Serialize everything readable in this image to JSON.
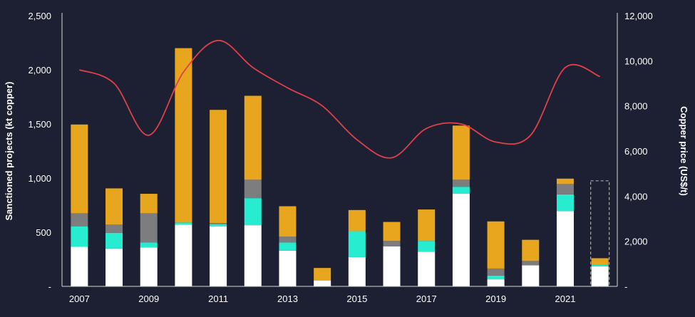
{
  "chart_data": {
    "type": "bar",
    "stacked": true,
    "categories": [
      "2007",
      "2008",
      "2009",
      "2010",
      "2011",
      "2012",
      "2013",
      "2014",
      "2015",
      "2016",
      "2017",
      "2018",
      "2019",
      "2020",
      "2021",
      "2022"
    ],
    "x_tick_labels": [
      "2007",
      "",
      "2009",
      "",
      "2011",
      "",
      "2013",
      "",
      "2015",
      "",
      "2017",
      "",
      "2019",
      "",
      "2021",
      ""
    ],
    "series": [
      {
        "color": "#ffffff",
        "values": [
          365,
          350,
          360,
          570,
          555,
          565,
          330,
          55,
          270,
          370,
          320,
          855,
          65,
          195,
          695,
          185
        ]
      },
      {
        "color": "#27ecd0",
        "values": [
          190,
          145,
          45,
          20,
          20,
          250,
          75,
          0,
          240,
          0,
          100,
          65,
          35,
          0,
          155,
          15
        ]
      },
      {
        "color": "#7d7d7f",
        "values": [
          120,
          75,
          270,
          0,
          10,
          170,
          55,
          0,
          0,
          50,
          0,
          65,
          65,
          40,
          95,
          0
        ]
      },
      {
        "color": "#e8a61f",
        "values": [
          820,
          335,
          180,
          1610,
          1045,
          775,
          280,
          115,
          195,
          175,
          290,
          500,
          435,
          195,
          50,
          60
        ]
      }
    ],
    "dashed_box": {
      "category": "2022",
      "ymin": 0,
      "ymax": 975,
      "color": "#aaaaaa"
    },
    "line": {
      "color": "#e0404a",
      "axis": "right",
      "x": [
        2007,
        2008,
        2009,
        2010,
        2011,
        2012,
        2013,
        2014,
        2015,
        2016,
        2017,
        2018,
        2019,
        2020,
        2021,
        2022
      ],
      "y": [
        9600,
        9000,
        6700,
        9500,
        10900,
        9700,
        8800,
        8000,
        6500,
        5700,
        7000,
        7200,
        6400,
        6700,
        9700,
        9300
      ]
    },
    "y_left": {
      "label": "Sanctioned projects (kt copper)",
      "range": [
        0,
        2500
      ],
      "ticks": [
        0,
        500,
        1000,
        1500,
        2000,
        2500
      ],
      "tick_labels": [
        "-",
        "500",
        "1,000",
        "1,500",
        "2,000",
        "2,500"
      ]
    },
    "y_right": {
      "label": "Copper price (US$/t)",
      "range": [
        0,
        12000
      ],
      "ticks": [
        0,
        2000,
        4000,
        6000,
        8000,
        10000,
        12000
      ],
      "tick_labels": [
        "-",
        "2,000",
        "4,000",
        "6,000",
        "8,000",
        "10,000",
        "12,000"
      ]
    },
    "grid": false,
    "colors": {
      "background": "#1d1f33",
      "axis": "#d8d8d8",
      "text": "#ffffff"
    }
  }
}
